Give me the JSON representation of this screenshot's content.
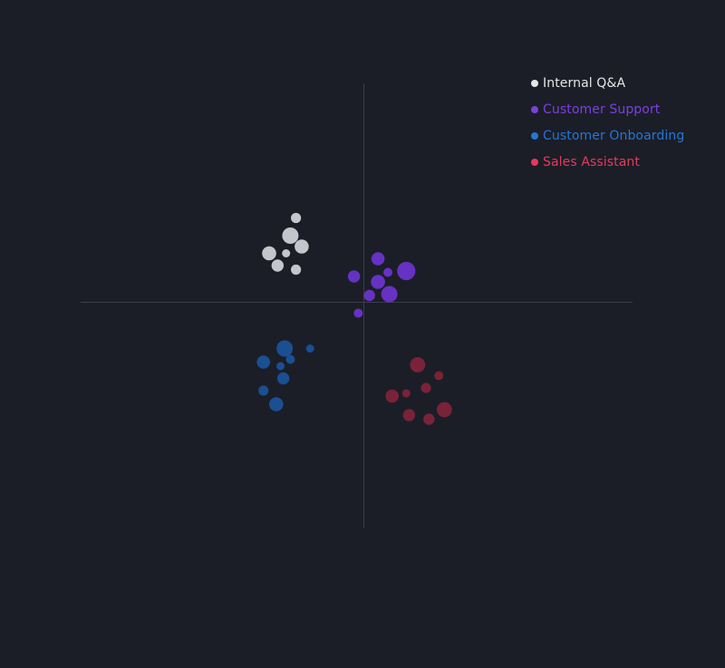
{
  "chart_data": {
    "type": "scatter",
    "title": "",
    "xlabel": "",
    "ylabel": "",
    "xlim": [
      -10,
      10
    ],
    "ylim": [
      -10,
      10
    ],
    "grid": false,
    "axes": "center crosshair",
    "legend_position": "top-right",
    "series": [
      {
        "name": "Internal Q&A",
        "color": "#e6e6e6",
        "marker_color": "#c4c6cb",
        "points": [
          {
            "x": -4.8,
            "y": 6.2,
            "size": 1.0
          },
          {
            "x": -5.2,
            "y": 4.9,
            "size": 1.6
          },
          {
            "x": -4.4,
            "y": 4.1,
            "size": 1.4
          },
          {
            "x": -6.7,
            "y": 3.6,
            "size": 1.4
          },
          {
            "x": -5.5,
            "y": 3.6,
            "size": 0.8
          },
          {
            "x": -6.1,
            "y": 2.7,
            "size": 1.2
          },
          {
            "x": -4.8,
            "y": 2.4,
            "size": 1.0
          }
        ]
      },
      {
        "name": "Customer Support",
        "color": "#7c3fe0",
        "marker_color": "#6632c2",
        "points": [
          {
            "x": 1.0,
            "y": 3.2,
            "size": 1.3
          },
          {
            "x": 1.7,
            "y": 2.2,
            "size": 0.9
          },
          {
            "x": 3.0,
            "y": 2.3,
            "size": 1.8
          },
          {
            "x": -0.7,
            "y": 1.9,
            "size": 1.2
          },
          {
            "x": 1.0,
            "y": 1.5,
            "size": 1.4
          },
          {
            "x": 1.8,
            "y": 0.6,
            "size": 1.6
          },
          {
            "x": 0.4,
            "y": 0.5,
            "size": 1.1
          },
          {
            "x": -0.4,
            "y": -0.8,
            "size": 0.9
          }
        ]
      },
      {
        "name": "Customer Onboarding",
        "color": "#2576d6",
        "marker_color": "#1a4f92",
        "points": [
          {
            "x": -5.6,
            "y": -3.4,
            "size": 1.6
          },
          {
            "x": -3.8,
            "y": -3.4,
            "size": 0.8
          },
          {
            "x": -5.2,
            "y": -4.2,
            "size": 0.9
          },
          {
            "x": -7.1,
            "y": -4.4,
            "size": 1.3
          },
          {
            "x": -5.9,
            "y": -4.7,
            "size": 0.8
          },
          {
            "x": -5.7,
            "y": -5.6,
            "size": 1.2
          },
          {
            "x": -7.1,
            "y": -6.5,
            "size": 1.0
          },
          {
            "x": -6.2,
            "y": -7.5,
            "size": 1.4
          }
        ]
      },
      {
        "name": "Sales Assistant",
        "color": "#e5395e",
        "marker_color": "#7a2238",
        "points": [
          {
            "x": 3.8,
            "y": -4.6,
            "size": 1.5
          },
          {
            "x": 5.3,
            "y": -5.4,
            "size": 0.9
          },
          {
            "x": 4.4,
            "y": -6.3,
            "size": 1.0
          },
          {
            "x": 3.0,
            "y": -6.7,
            "size": 0.8
          },
          {
            "x": 2.0,
            "y": -6.9,
            "size": 1.3
          },
          {
            "x": 5.7,
            "y": -7.9,
            "size": 1.5
          },
          {
            "x": 3.2,
            "y": -8.3,
            "size": 1.2
          },
          {
            "x": 4.6,
            "y": -8.6,
            "size": 1.1
          }
        ]
      }
    ]
  }
}
